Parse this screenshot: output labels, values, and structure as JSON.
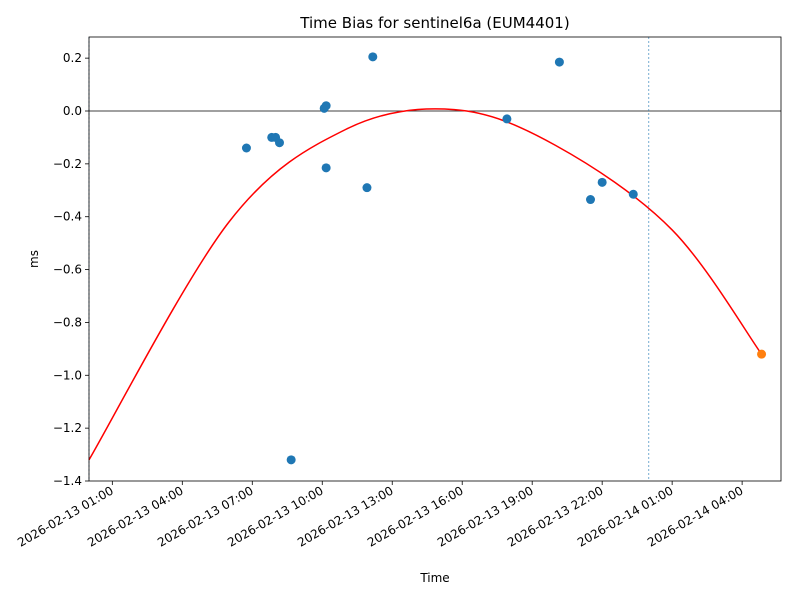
{
  "chart_data": {
    "type": "scatter",
    "title": "Time Bias for sentinel6a (EUM4401)",
    "xlabel": "Time",
    "ylabel": "ms",
    "xlim": [
      "2026-02-13 00:00",
      "2026-02-14 05:40"
    ],
    "ylim": [
      -1.4,
      0.28
    ],
    "yticks": [
      {
        "value": 0.2,
        "label": "0.2"
      },
      {
        "value": 0.0,
        "label": "0.0"
      },
      {
        "value": -0.2,
        "label": "−0.2"
      },
      {
        "value": -0.4,
        "label": "−0.4"
      },
      {
        "value": -0.6,
        "label": "−0.6"
      },
      {
        "value": -0.8,
        "label": "−0.8"
      },
      {
        "value": -1.0,
        "label": "−1.0"
      },
      {
        "value": -1.2,
        "label": "−1.2"
      },
      {
        "value": -1.4,
        "label": "−1.4"
      }
    ],
    "xticks": [
      {
        "value": "2026-02-13 01:00",
        "label": "2026-02-13 01:00"
      },
      {
        "value": "2026-02-13 04:00",
        "label": "2026-02-13 04:00"
      },
      {
        "value": "2026-02-13 07:00",
        "label": "2026-02-13 07:00"
      },
      {
        "value": "2026-02-13 10:00",
        "label": "2026-02-13 10:00"
      },
      {
        "value": "2026-02-13 13:00",
        "label": "2026-02-13 13:00"
      },
      {
        "value": "2026-02-13 16:00",
        "label": "2026-02-13 16:00"
      },
      {
        "value": "2026-02-13 19:00",
        "label": "2026-02-13 19:00"
      },
      {
        "value": "2026-02-13 22:00",
        "label": "2026-02-13 22:00"
      },
      {
        "value": "2026-02-14 01:00",
        "label": "2026-02-14 01:00"
      },
      {
        "value": "2026-02-14 04:00",
        "label": "2026-02-14 04:00"
      }
    ],
    "series": [
      {
        "color": "#1f77b4",
        "points": [
          {
            "x": "2026-02-13 06:45",
            "y": -0.14
          },
          {
            "x": "2026-02-13 07:50",
            "y": -0.1
          },
          {
            "x": "2026-02-13 08:00",
            "y": -0.1
          },
          {
            "x": "2026-02-13 08:10",
            "y": -0.12
          },
          {
            "x": "2026-02-13 08:40",
            "y": -1.32
          },
          {
            "x": "2026-02-13 10:05",
            "y": 0.01
          },
          {
            "x": "2026-02-13 10:10",
            "y": 0.02
          },
          {
            "x": "2026-02-13 10:10",
            "y": -0.215
          },
          {
            "x": "2026-02-13 11:55",
            "y": -0.29
          },
          {
            "x": "2026-02-13 12:10",
            "y": 0.205
          },
          {
            "x": "2026-02-13 17:55",
            "y": -0.03
          },
          {
            "x": "2026-02-13 20:10",
            "y": 0.185
          },
          {
            "x": "2026-02-13 21:30",
            "y": -0.335
          },
          {
            "x": "2026-02-13 22:00",
            "y": -0.27
          },
          {
            "x": "2026-02-13 23:20",
            "y": -0.315
          }
        ]
      },
      {
        "color": "#ff7f0e",
        "points": [
          {
            "x": "2026-02-14 04:50",
            "y": -0.92
          }
        ]
      }
    ],
    "fit_curve": {
      "color": "#ff0000",
      "points": [
        {
          "x": "2026-02-13 00:00",
          "y": -1.32
        },
        {
          "x": "2026-02-13 06:00",
          "y": -0.42
        },
        {
          "x": "2026-02-13 11:00",
          "y": -0.07
        },
        {
          "x": "2026-02-13 15:40",
          "y": 0.005
        },
        {
          "x": "2026-02-13 20:00",
          "y": -0.13
        },
        {
          "x": "2026-02-14 01:00",
          "y": -0.45
        },
        {
          "x": "2026-02-14 04:50",
          "y": -0.92
        }
      ]
    },
    "reference_lines": {
      "horizontal_y": 0.0,
      "vertical_x": [
        "2026-02-13 00:00",
        "2026-02-14 00:00"
      ],
      "vertical_color": "#1f77b4",
      "horizontal_color": "#000000"
    },
    "grid": false,
    "legend": "none"
  }
}
